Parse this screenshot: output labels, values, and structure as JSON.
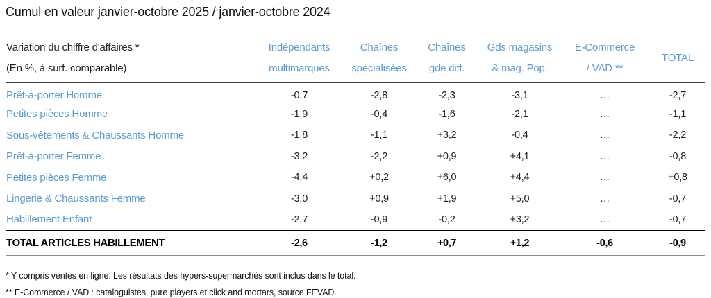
{
  "title": "Cumul en valeur janvier-octobre 2025 / janvier-octobre 2024",
  "table": {
    "row_header": {
      "line1": "Variation du chiffre d'affaires *",
      "line2": "(En %, à surf. comparable)"
    },
    "columns": [
      {
        "line1": "Indépendants",
        "line2": "multimarques"
      },
      {
        "line1": "Chaînes",
        "line2": "spécialisées"
      },
      {
        "line1": "Chaînes",
        "line2": "gde diff."
      },
      {
        "line1": "Gds magasins",
        "line2": "& mag. Pop."
      },
      {
        "line1": "E-Commerce",
        "line2": "/ VAD **"
      },
      {
        "line1": "TOTAL",
        "line2": ""
      }
    ],
    "rows": [
      {
        "label": "Prêt-à-porter Homme",
        "values": [
          "-0,7",
          "-2,8",
          "-2,3",
          "-3,1",
          "…",
          "-2,7"
        ]
      },
      {
        "label": "Petites pièces Homme",
        "values": [
          "-1,9",
          "-0,4",
          "-1,6",
          "-2,1",
          "…",
          "-1,1"
        ]
      },
      {
        "label": "Sous-vêtements & Chaussants Homme",
        "values": [
          "-1,8",
          "-1,1",
          "+3,2",
          "-0,4",
          "…",
          "-2,2"
        ]
      },
      {
        "label": "Prêt-à-porter Femme",
        "values": [
          "-3,2",
          "-2,2",
          "+0,9",
          "+4,1",
          "…",
          "-0,8"
        ]
      },
      {
        "label": "Petites pièces Femme",
        "values": [
          "-4,4",
          "+0,2",
          "+6,0",
          "+4,4",
          "…",
          "+0,8"
        ]
      },
      {
        "label": "Lingerie & Chaussants Femme",
        "values": [
          "-3,0",
          "+0,9",
          "+1,9",
          "+5,0",
          "…",
          "-0,7"
        ]
      },
      {
        "label": "Habillement Enfant",
        "values": [
          "-2,7",
          "-0,9",
          "-0,2",
          "+3,2",
          "…",
          "-0,7"
        ]
      }
    ],
    "total_row": {
      "label": "TOTAL ARTICLES HABILLEMENT",
      "values": [
        "-2,6",
        "-1,2",
        "+0,7",
        "+1,2",
        "-0,6",
        "-0,9"
      ]
    }
  },
  "footnotes": [
    "* Y compris ventes en ligne. Les résultats des hypers-supermarchés sont inclus dans le total.",
    "** E-Commerce / VAD : cataloguistes, pure players et click and mortars, source FEVAD."
  ],
  "colors": {
    "accent_blue": "#5B9BD5",
    "text_black": "#1f1f1f",
    "header_rule_dark": "#3d3d3d",
    "total_rule_top": "#000000",
    "total_rule_bottom": "#8c8c8c"
  }
}
